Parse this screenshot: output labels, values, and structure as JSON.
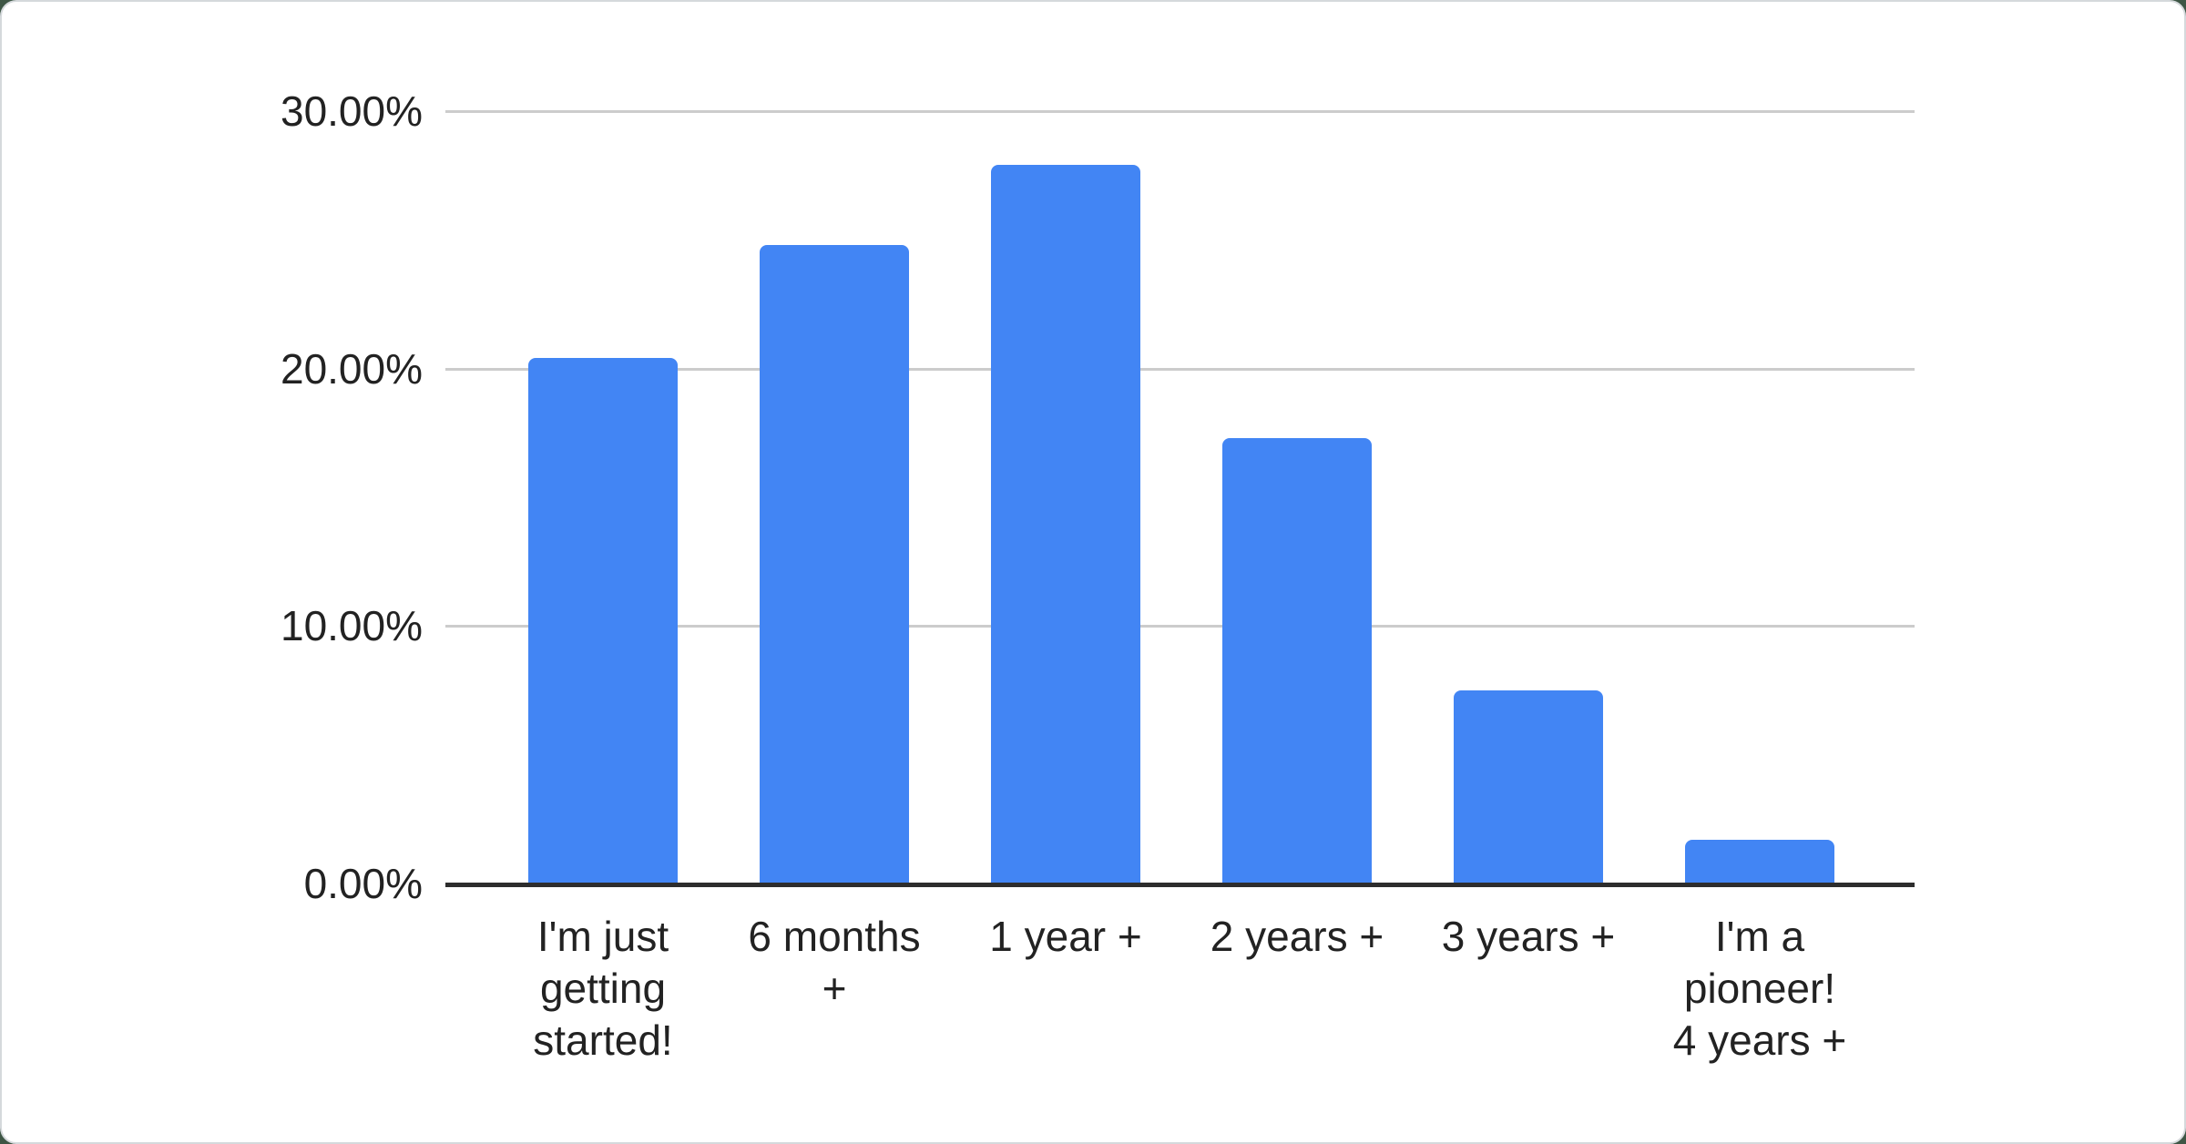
{
  "page": {
    "background_color": "#3e5645",
    "card_background": "#ffffff",
    "card_border_color": "#d5d9dc"
  },
  "chart_data": {
    "type": "bar",
    "title": "",
    "xlabel": "",
    "ylabel": "",
    "categories": [
      "I'm just\ngetting\nstarted!",
      "6 months\n+",
      "1 year +",
      "2 years +",
      "3 years +",
      "I'm a\npioneer!\n4 years +"
    ],
    "values": [
      20.4,
      24.8,
      27.9,
      17.3,
      7.5,
      1.7
    ],
    "ylim": [
      0,
      30
    ],
    "ytick_values": [
      0,
      10,
      20,
      30
    ],
    "ytick_labels": [
      "0.00%",
      "10.00%",
      "20.00%",
      "30.00%"
    ],
    "grid": true,
    "legend": "none",
    "bar_color": "#4285f4",
    "gridline_color": "#cccccc",
    "axis_line_color": "#2d2d2d",
    "label_color": "#222222"
  }
}
